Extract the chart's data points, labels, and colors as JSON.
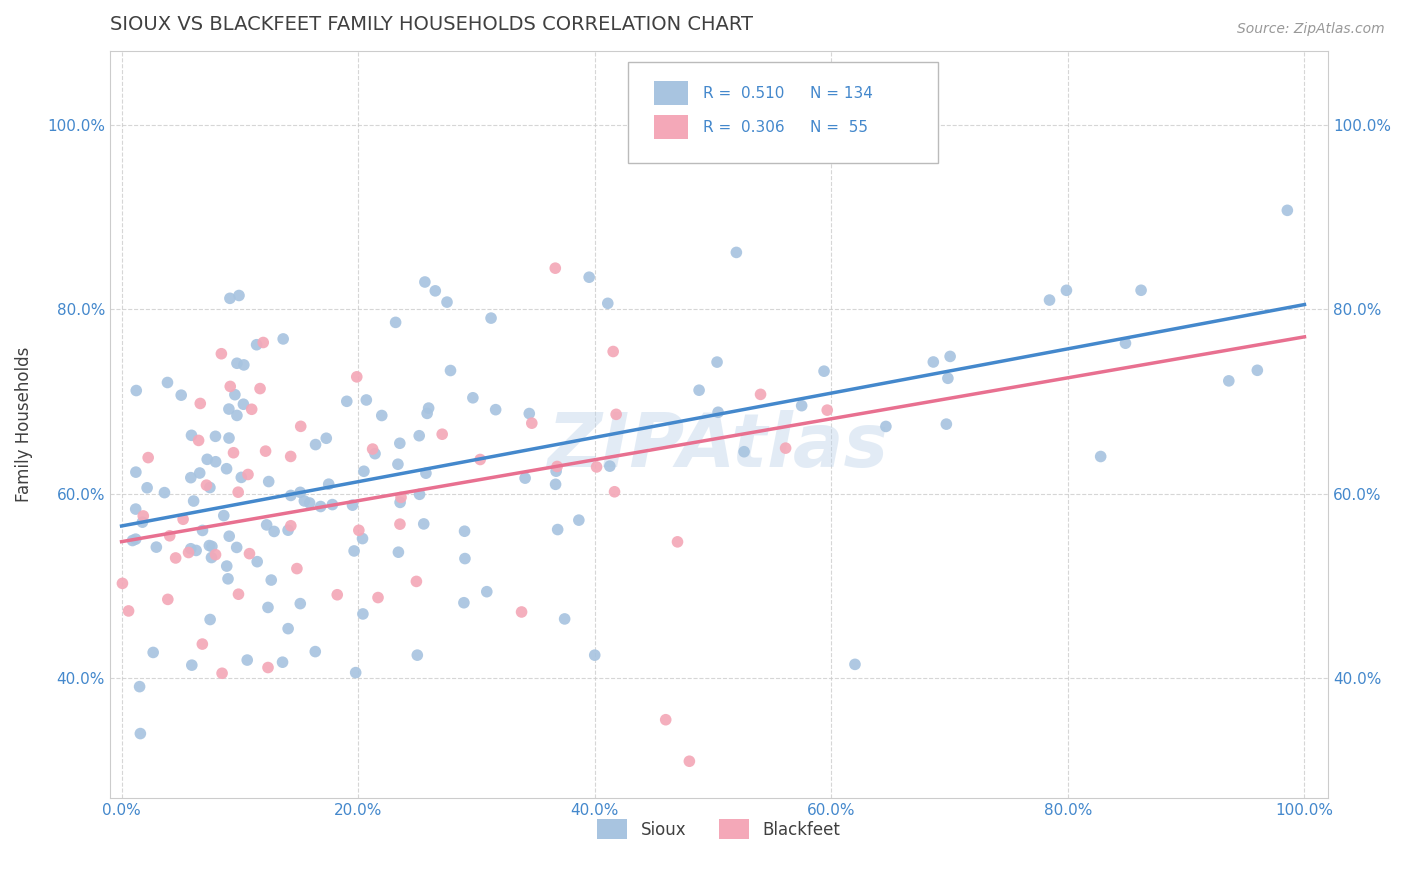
{
  "title": "SIOUX VS BLACKFEET FAMILY HOUSEHOLDS CORRELATION CHART",
  "source_text": "Source: ZipAtlas.com",
  "ylabel": "Family Households",
  "xlim": [
    -0.01,
    1.02
  ],
  "ylim": [
    0.27,
    1.08
  ],
  "xtick_values": [
    0.0,
    0.2,
    0.4,
    0.6,
    0.8,
    1.0
  ],
  "xtick_labels": [
    "0.0%",
    "20.0%",
    "40.0%",
    "60.0%",
    "80.0%",
    "100.0%"
  ],
  "ytick_values": [
    0.4,
    0.6,
    0.8,
    1.0
  ],
  "ytick_labels": [
    "40.0%",
    "60.0%",
    "80.0%",
    "100.0%"
  ],
  "sioux_color": "#a8c4e0",
  "blackfeet_color": "#f4a8b8",
  "sioux_line_color": "#4488cc",
  "blackfeet_line_color": "#e87090",
  "sioux_R": 0.51,
  "sioux_N": 134,
  "blackfeet_R": 0.306,
  "blackfeet_N": 55,
  "watermark": "ZIPAtlas",
  "background_color": "#ffffff",
  "grid_color": "#cccccc",
  "title_color": "#404040",
  "title_fontsize": 14,
  "axis_label_color": "#404040",
  "tick_color": "#4488cc",
  "legend_R_color": "#4488cc",
  "sioux_line_x0": 0.0,
  "sioux_line_y0": 0.565,
  "sioux_line_x1": 1.0,
  "sioux_line_y1": 0.805,
  "blackfeet_line_x0": 0.0,
  "blackfeet_line_y0": 0.548,
  "blackfeet_line_x1": 1.0,
  "blackfeet_line_y1": 0.77
}
